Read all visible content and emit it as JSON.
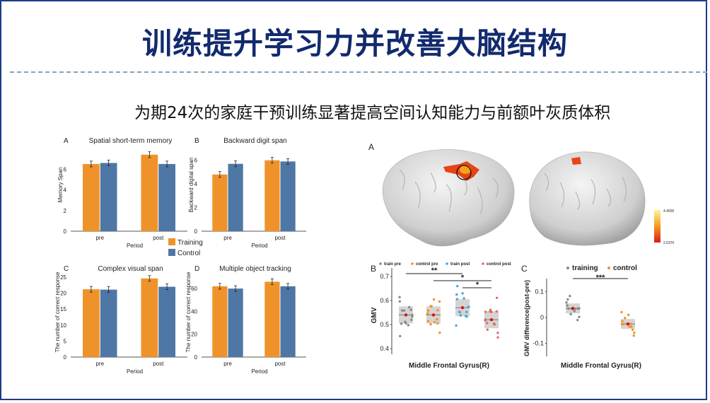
{
  "slide": {
    "title": "训练提升学习力并改善大脑结构",
    "subtitle": "为期24次的家庭干预训练显著提高空间认知能力与前额叶灰质体积"
  },
  "legend": {
    "training": "Training",
    "control": "Control"
  },
  "colors": {
    "training": "#f0922a",
    "control": "#4f77a5",
    "accent": "#122a6e"
  },
  "chart_data": [
    {
      "type": "bar",
      "panel": "A",
      "title": "Spatial short-term memory",
      "xlabel": "Period",
      "ylabel": "Memory Span",
      "categories": [
        "pre",
        "post"
      ],
      "ylim": [
        0,
        8
      ],
      "yticks": [
        0,
        2,
        4,
        6
      ],
      "series": [
        {
          "name": "Training",
          "values": [
            6.5,
            7.4
          ]
        },
        {
          "name": "Control",
          "values": [
            6.6,
            6.5
          ]
        }
      ]
    },
    {
      "type": "bar",
      "panel": "B",
      "title": "Backward digit span",
      "xlabel": "Period",
      "ylabel": "Backward digital span",
      "categories": [
        "pre",
        "post"
      ],
      "ylim": [
        0,
        7
      ],
      "yticks": [
        0,
        2,
        4,
        6
      ],
      "series": [
        {
          "name": "Training",
          "values": [
            4.8,
            6.0
          ]
        },
        {
          "name": "Control",
          "values": [
            5.7,
            5.9
          ]
        }
      ]
    },
    {
      "type": "bar",
      "panel": "C",
      "title": "Complex visual span",
      "xlabel": "Period",
      "ylabel": "The number of correct response",
      "categories": [
        "pre",
        "post"
      ],
      "ylim": [
        0,
        25
      ],
      "yticks": [
        0,
        5,
        10,
        15,
        20,
        25
      ],
      "series": [
        {
          "name": "Training",
          "values": [
            21.2,
            24.6
          ]
        },
        {
          "name": "Control",
          "values": [
            21.1,
            22.0
          ]
        }
      ]
    },
    {
      "type": "bar",
      "panel": "D",
      "title": "Multiple object tracking",
      "xlabel": "Period",
      "ylabel": "The number of correct response",
      "categories": [
        "pre",
        "post"
      ],
      "ylim": [
        0,
        70
      ],
      "yticks": [
        0,
        20,
        40,
        60
      ],
      "series": [
        {
          "name": "Training",
          "values": [
            62,
            66
          ]
        },
        {
          "name": "Control",
          "values": [
            60,
            62
          ]
        }
      ]
    }
  ],
  "brain": {
    "panel": "A",
    "colorbar": {
      "max": "4.4655",
      "min": "2.0370"
    }
  },
  "panelB": {
    "label": "B",
    "ylabel": "GMV",
    "xlabel": "Middle Frontal Gyrus(R)",
    "yticks": [
      "0.4",
      "0.5",
      "0.6",
      "0.7"
    ],
    "legend": [
      "train pre",
      "control pre",
      "train post",
      "control post"
    ],
    "groups": [
      {
        "median": 0.54
      },
      {
        "median": 0.54
      },
      {
        "median": 0.57
      },
      {
        "median": 0.52
      }
    ],
    "sig": [
      "**",
      "*",
      "*"
    ]
  },
  "panelC": {
    "label": "C",
    "ylabel": "GMV difference(post-pre)",
    "xlabel": "Middle Frontal Gyrus(R)",
    "yticks": [
      "-0.1",
      "0",
      "0.1"
    ],
    "legend": [
      "training",
      "control"
    ],
    "groups": [
      {
        "median": 0.035
      },
      {
        "median": -0.025
      }
    ],
    "sig": "***"
  }
}
